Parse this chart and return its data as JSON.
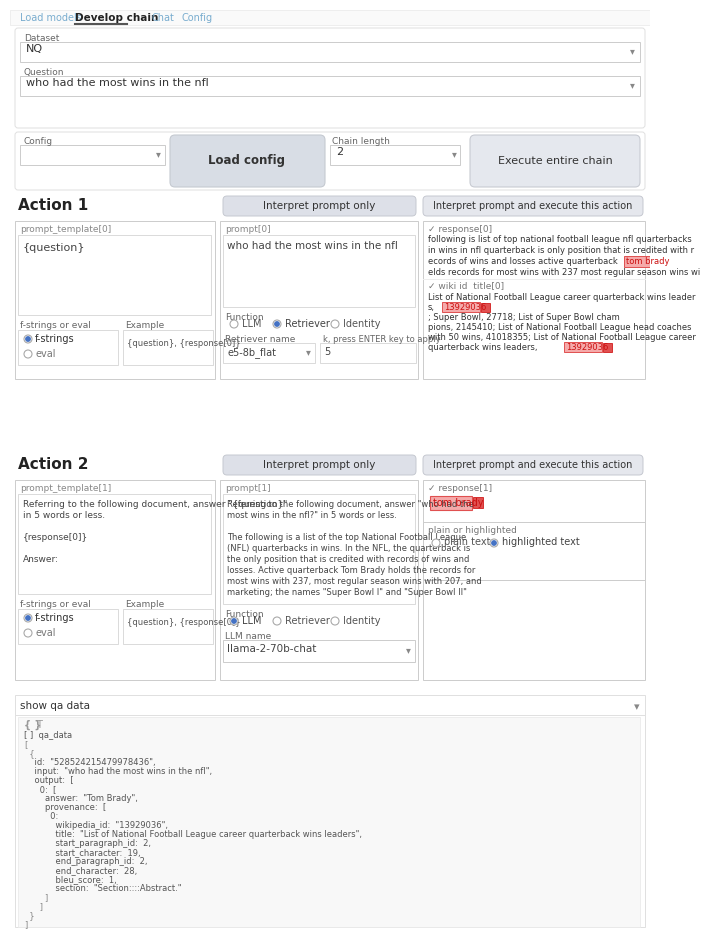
{
  "bg_color": "#ffffff",
  "tabs": [
    "Load models",
    "Develop chain",
    "Chat",
    "Config"
  ],
  "active_tab_color": "#222222",
  "inactive_tab_color": "#7aadcf",
  "dataset_label": "Dataset",
  "dataset_value": "NQ",
  "question_label": "Question",
  "question_value": "who had the most wins in the nfl",
  "config_label": "Config",
  "chain_length_label": "Chain length",
  "chain_length_value": "2",
  "load_config_btn": "Load config",
  "execute_btn": "Execute entire chain",
  "action1_title": "Action 1",
  "action2_title": "Action 2",
  "interpret_only_btn": "Interpret prompt only",
  "interpret_execute_btn": "Interpret prompt and execute this action",
  "prompt_template0_label": "prompt_template[0]",
  "prompt_template0_content": "{question}",
  "prompt0_label": "prompt[0]",
  "prompt0_content": "who had the most wins in the nfl",
  "response0_label": "✓ response[0]",
  "resp0_line1": "following is list of top national football league nfl quarterbacks",
  "resp0_line2": "in wins in nfl quarterback is only position that is credited with r",
  "resp0_line3": "ecords of wins and losses active quarterback",
  "resp0_line4": "elds records for most wins with 237 most regular season wins wi",
  "wiki_id_label": "✓ wiki id  title[0]",
  "wiki_line1": "List of National Football League career quarterback wins leader",
  "wiki_line2": "s,",
  "wiki_line3": "; Super Bowl, 27718; List of Super Bowl cham",
  "wiki_line4": "pions, 2145410; List of National Football League head coaches",
  "wiki_line5": "with 50 wins, 41018355; List of National Football League career",
  "wiki_line6": "quarterback wins leaders,",
  "fstrings_eval_label": "f-strings or eval",
  "example_label": "Example",
  "example_content": "{question}, {response[0]}",
  "fstrings_radio": "f-strings",
  "eval_radio": "eval",
  "function_label": "Function",
  "llm_radio": "LLM",
  "retriever_radio": "Retriever",
  "identity_radio": "Identity",
  "retriever_name_label": "Retriever name",
  "retriever_name_value": "e5-8b_flat",
  "k_label": "k, press ENTER key to apply",
  "k_value": "5",
  "prompt_template1_label": "prompt_template[1]",
  "pt1_line1": "Referring to the following document, answer \"{question}\"",
  "pt1_line2": "in 5 words or less.",
  "pt1_line3": "{response[0]}",
  "pt1_line4": "Answer:",
  "prompt1_label": "prompt[1]",
  "p1_line1": "Referring to the following document, answer \"who had the",
  "p1_line2": "most wins in the nfl?\" in 5 words or less.",
  "p1_line3": "The following is a list of the top National Football League",
  "p1_line4": "(NFL) quarterbacks in wins. In the NFL, the quarterback is",
  "p1_line5": "the only position that is credited with records of wins and",
  "p1_line6": "losses. Active quarterback Tom Brady holds the records for",
  "p1_line7": "most wins with 237, most regular season wins with 207, and",
  "p1_line8": "marketing; the names \"Super Bowl I\" and \"Super Bowl II\"",
  "response1_label": "✓ response[1]",
  "tom_brady_text": "tom brady",
  "plain_highlighted_label": "plain or highlighted",
  "plain_text": "plain text",
  "highlighted_text": "highlighted text",
  "llm_name_label": "LLM name",
  "llm_name_value": "llama-2-70b-chat",
  "show_qa_label": "show qa data",
  "code_line01": "{ }  qa_data",
  "code_line02": "[",
  "code_line03": "  {",
  "code_line04": "    id:  \"528524215479978436\",",
  "code_line05": "    input:  \"who had the most wins in the nfl\",",
  "code_line06": "    output:  [",
  "code_line07": "      0:  [",
  "code_line08": "        answer:  \"Tom Brady\",",
  "code_line09": "        provenance:  [",
  "code_line10": "          0:",
  "code_line11": "            wikipedia_id:  \"13929036\",",
  "code_line12": "            title:  \"List of National Football League career quarterback wins leaders\",",
  "code_line13": "            start_paragraph_id:  2,",
  "code_line14": "            start_character:  19,",
  "code_line15": "            end_paragraph_id:  2,",
  "code_line16": "            end_character:  28,",
  "code_line17": "            bleu_score:  1,",
  "code_line18": "            section:  \"Section::::Abstract.\"",
  "code_line19": "        ]",
  "code_line20": "      ]",
  "code_line21": "  }",
  "code_line22": "]",
  "highlight_red": "#e05050",
  "highlight_pink": "#f5aaaa",
  "radio_blue": "#4472c4",
  "border_light": "#dddddd",
  "border_med": "#cccccc",
  "text_dark": "#333333",
  "text_mid": "#555555",
  "text_light": "#888888",
  "btn_gray1": "#d5d8dc",
  "btn_gray2": "#e8eaed",
  "panel_bg": "#ffffff",
  "section_bg": "#f5f5f5"
}
